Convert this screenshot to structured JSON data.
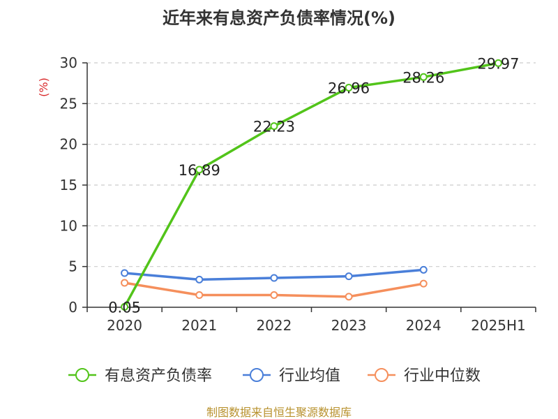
{
  "chart_data": {
    "type": "line",
    "title": "近年来有息资产负债率情况(%)",
    "ylabel": "(%)",
    "categories": [
      "2020",
      "2021",
      "2022",
      "2023",
      "2024",
      "2025H1"
    ],
    "ylim": [
      0,
      30
    ],
    "yticks": [
      0,
      5,
      10,
      15,
      20,
      25,
      30
    ],
    "grid": true,
    "legend_position": "bottom",
    "series": [
      {
        "name": "有息资产负债率",
        "color": "#52c41a",
        "values": [
          0.05,
          16.89,
          22.23,
          26.96,
          28.26,
          29.97
        ],
        "labels": [
          "0.05",
          "16.89",
          "22.23",
          "26.96",
          "28.26",
          "29.97"
        ]
      },
      {
        "name": "行业均值",
        "color": "#4a7fd9",
        "values": [
          4.2,
          3.4,
          3.6,
          3.8,
          4.6,
          null
        ]
      },
      {
        "name": "行业中位数",
        "color": "#f58f5c",
        "values": [
          3.0,
          1.5,
          1.5,
          1.3,
          2.9,
          null
        ]
      }
    ]
  },
  "source": "制图数据来自恒生聚源数据库"
}
